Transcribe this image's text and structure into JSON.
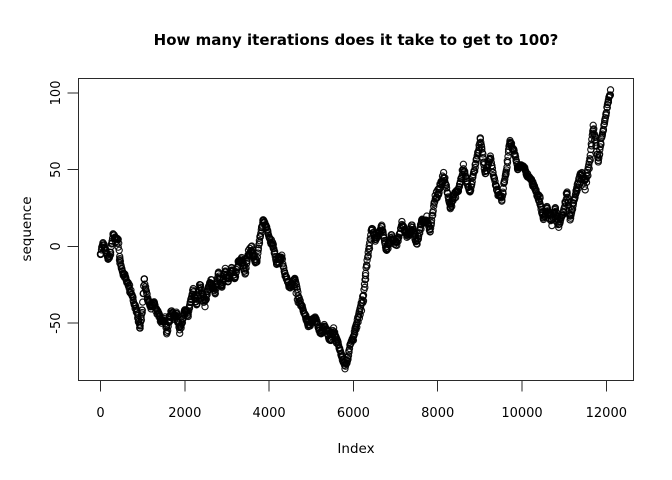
{
  "window": {
    "background": "#ffffff"
  },
  "chart_data": {
    "type": "scatter",
    "title": "How many iterations does it take to get to 100?",
    "xlabel": "Index",
    "ylabel": "sequence",
    "marker": "open-circle",
    "marker_color": "#000000",
    "axis_color": "#2a2a2a",
    "grid": false,
    "legend": null,
    "x_ticks": [
      0,
      2000,
      4000,
      6000,
      8000,
      10000,
      12000
    ],
    "y_ticks": [
      -50,
      0,
      50,
      100
    ],
    "xlim": [
      -522,
      12645
    ],
    "ylim": [
      -87.4,
      109.4
    ],
    "n_points": 12100,
    "final_point": {
      "index": 12100,
      "value": 102
    },
    "series_keypoints": [
      [
        0,
        -4
      ],
      [
        60,
        2
      ],
      [
        120,
        -2
      ],
      [
        180,
        -7
      ],
      [
        240,
        -3
      ],
      [
        300,
        10
      ],
      [
        360,
        6
      ],
      [
        420,
        2
      ],
      [
        460,
        -8
      ],
      [
        540,
        -17
      ],
      [
        660,
        -24
      ],
      [
        740,
        -32
      ],
      [
        820,
        -41
      ],
      [
        900,
        -49
      ],
      [
        940,
        -53
      ],
      [
        990,
        -44
      ],
      [
        1040,
        -22
      ],
      [
        1120,
        -35
      ],
      [
        1200,
        -42
      ],
      [
        1280,
        -38
      ],
      [
        1360,
        -45
      ],
      [
        1450,
        -51
      ],
      [
        1530,
        -48
      ],
      [
        1570,
        -54
      ],
      [
        1640,
        -47
      ],
      [
        1690,
        -42
      ],
      [
        1760,
        -47
      ],
      [
        1800,
        -44
      ],
      [
        1880,
        -55
      ],
      [
        1960,
        -47
      ],
      [
        2000,
        -42
      ],
      [
        2080,
        -46
      ],
      [
        2200,
        -29
      ],
      [
        2280,
        -38
      ],
      [
        2360,
        -27
      ],
      [
        2480,
        -38
      ],
      [
        2560,
        -28
      ],
      [
        2640,
        -24
      ],
      [
        2720,
        -32
      ],
      [
        2800,
        -20
      ],
      [
        2880,
        -26
      ],
      [
        2960,
        -15
      ],
      [
        3030,
        -22
      ],
      [
        3110,
        -13
      ],
      [
        3190,
        -21
      ],
      [
        3270,
        -10
      ],
      [
        3350,
        -8
      ],
      [
        3430,
        -16
      ],
      [
        3510,
        -5
      ],
      [
        3590,
        -3
      ],
      [
        3710,
        -11
      ],
      [
        3790,
        5
      ],
      [
        3860,
        17
      ],
      [
        3940,
        12
      ],
      [
        4020,
        4
      ],
      [
        4100,
        -2
      ],
      [
        4180,
        -11
      ],
      [
        4300,
        -6
      ],
      [
        4380,
        -18
      ],
      [
        4500,
        -26
      ],
      [
        4610,
        -23
      ],
      [
        4690,
        -34
      ],
      [
        4810,
        -42
      ],
      [
        4930,
        -50
      ],
      [
        5090,
        -47
      ],
      [
        5210,
        -55
      ],
      [
        5330,
        -52
      ],
      [
        5450,
        -59
      ],
      [
        5530,
        -56
      ],
      [
        5600,
        -63
      ],
      [
        5680,
        -69
      ],
      [
        5800,
        -79
      ],
      [
        5920,
        -65
      ],
      [
        6000,
        -62
      ],
      [
        6080,
        -51
      ],
      [
        6160,
        -43
      ],
      [
        6240,
        -33
      ],
      [
        6290,
        -20
      ],
      [
        6350,
        -5
      ],
      [
        6440,
        12
      ],
      [
        6520,
        4
      ],
      [
        6600,
        10
      ],
      [
        6680,
        13
      ],
      [
        6790,
        -1
      ],
      [
        6910,
        8
      ],
      [
        7030,
        1
      ],
      [
        7150,
        14
      ],
      [
        7270,
        6
      ],
      [
        7390,
        12
      ],
      [
        7510,
        3
      ],
      [
        7620,
        14
      ],
      [
        7740,
        19
      ],
      [
        7820,
        10
      ],
      [
        7940,
        30
      ],
      [
        8020,
        36
      ],
      [
        8140,
        45
      ],
      [
        8300,
        27
      ],
      [
        8490,
        38
      ],
      [
        8610,
        53
      ],
      [
        8770,
        34
      ],
      [
        8890,
        50
      ],
      [
        9010,
        68
      ],
      [
        9130,
        47
      ],
      [
        9250,
        58
      ],
      [
        9400,
        38
      ],
      [
        9520,
        30
      ],
      [
        9620,
        50
      ],
      [
        9715,
        69
      ],
      [
        9800,
        62
      ],
      [
        9900,
        49
      ],
      [
        10040,
        51
      ],
      [
        10160,
        44
      ],
      [
        10270,
        38
      ],
      [
        10430,
        29
      ],
      [
        10510,
        19
      ],
      [
        10590,
        26
      ],
      [
        10710,
        16
      ],
      [
        10790,
        23
      ],
      [
        10870,
        14
      ],
      [
        10990,
        22
      ],
      [
        11070,
        34
      ],
      [
        11140,
        19
      ],
      [
        11220,
        28
      ],
      [
        11300,
        39
      ],
      [
        11420,
        47
      ],
      [
        11500,
        40
      ],
      [
        11620,
        58
      ],
      [
        11690,
        77
      ],
      [
        11810,
        56
      ],
      [
        11930,
        77
      ],
      [
        12050,
        97
      ],
      [
        12100,
        102
      ]
    ]
  }
}
